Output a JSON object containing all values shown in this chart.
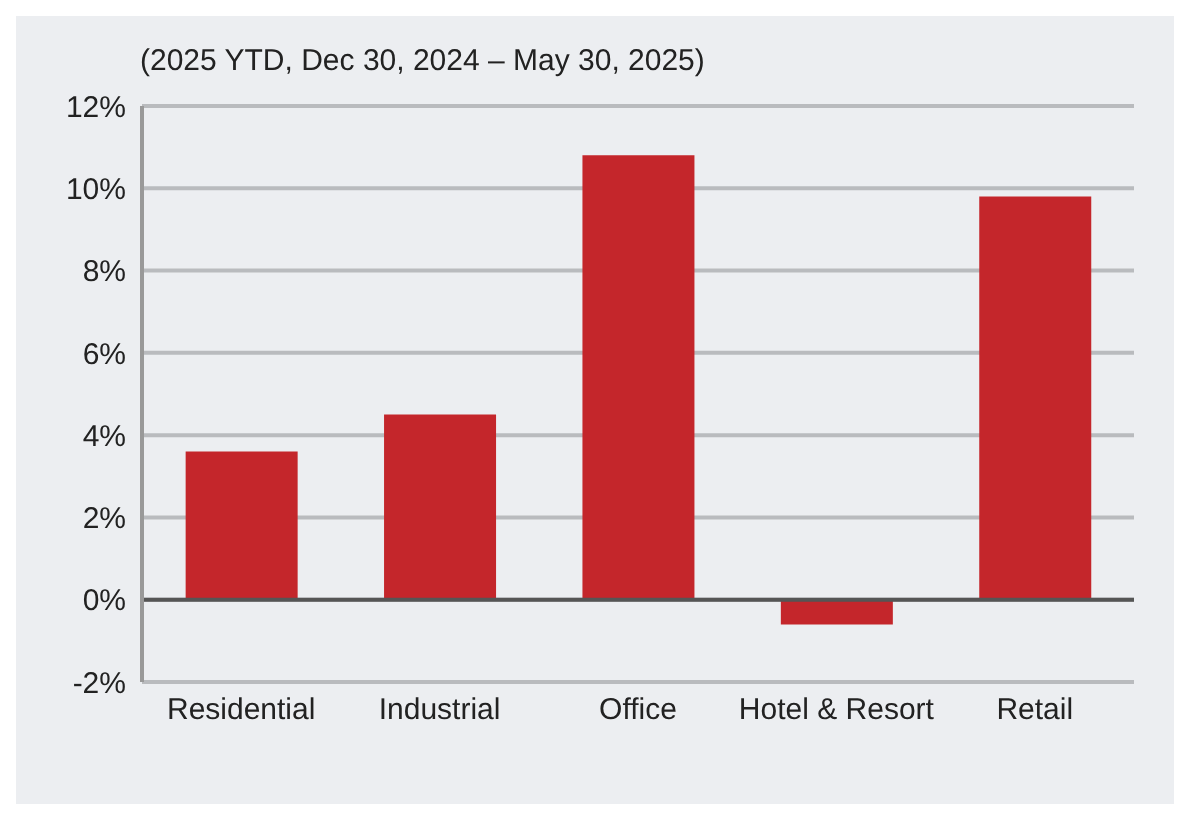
{
  "chart_data": {
    "type": "bar",
    "subtitle": "(2025 YTD, Dec 30, 2024 – May 30, 2025)",
    "categories": [
      "Residential",
      "Industrial",
      "Office",
      "Hotel & Resort",
      "Retail"
    ],
    "values": [
      3.6,
      4.5,
      10.8,
      -0.6,
      9.8
    ],
    "color": "#c4262b",
    "ylim": [
      -2,
      12
    ],
    "yticks": [
      {
        "value": -2,
        "label": "-2%"
      },
      {
        "value": 0,
        "label": "0%"
      },
      {
        "value": 2,
        "label": "2%"
      },
      {
        "value": 4,
        "label": "4%"
      },
      {
        "value": 6,
        "label": "6%"
      },
      {
        "value": 8,
        "label": "8%"
      },
      {
        "value": 10,
        "label": "10%"
      },
      {
        "value": 12,
        "label": "12%"
      }
    ],
    "grid": "y",
    "legend": false
  }
}
